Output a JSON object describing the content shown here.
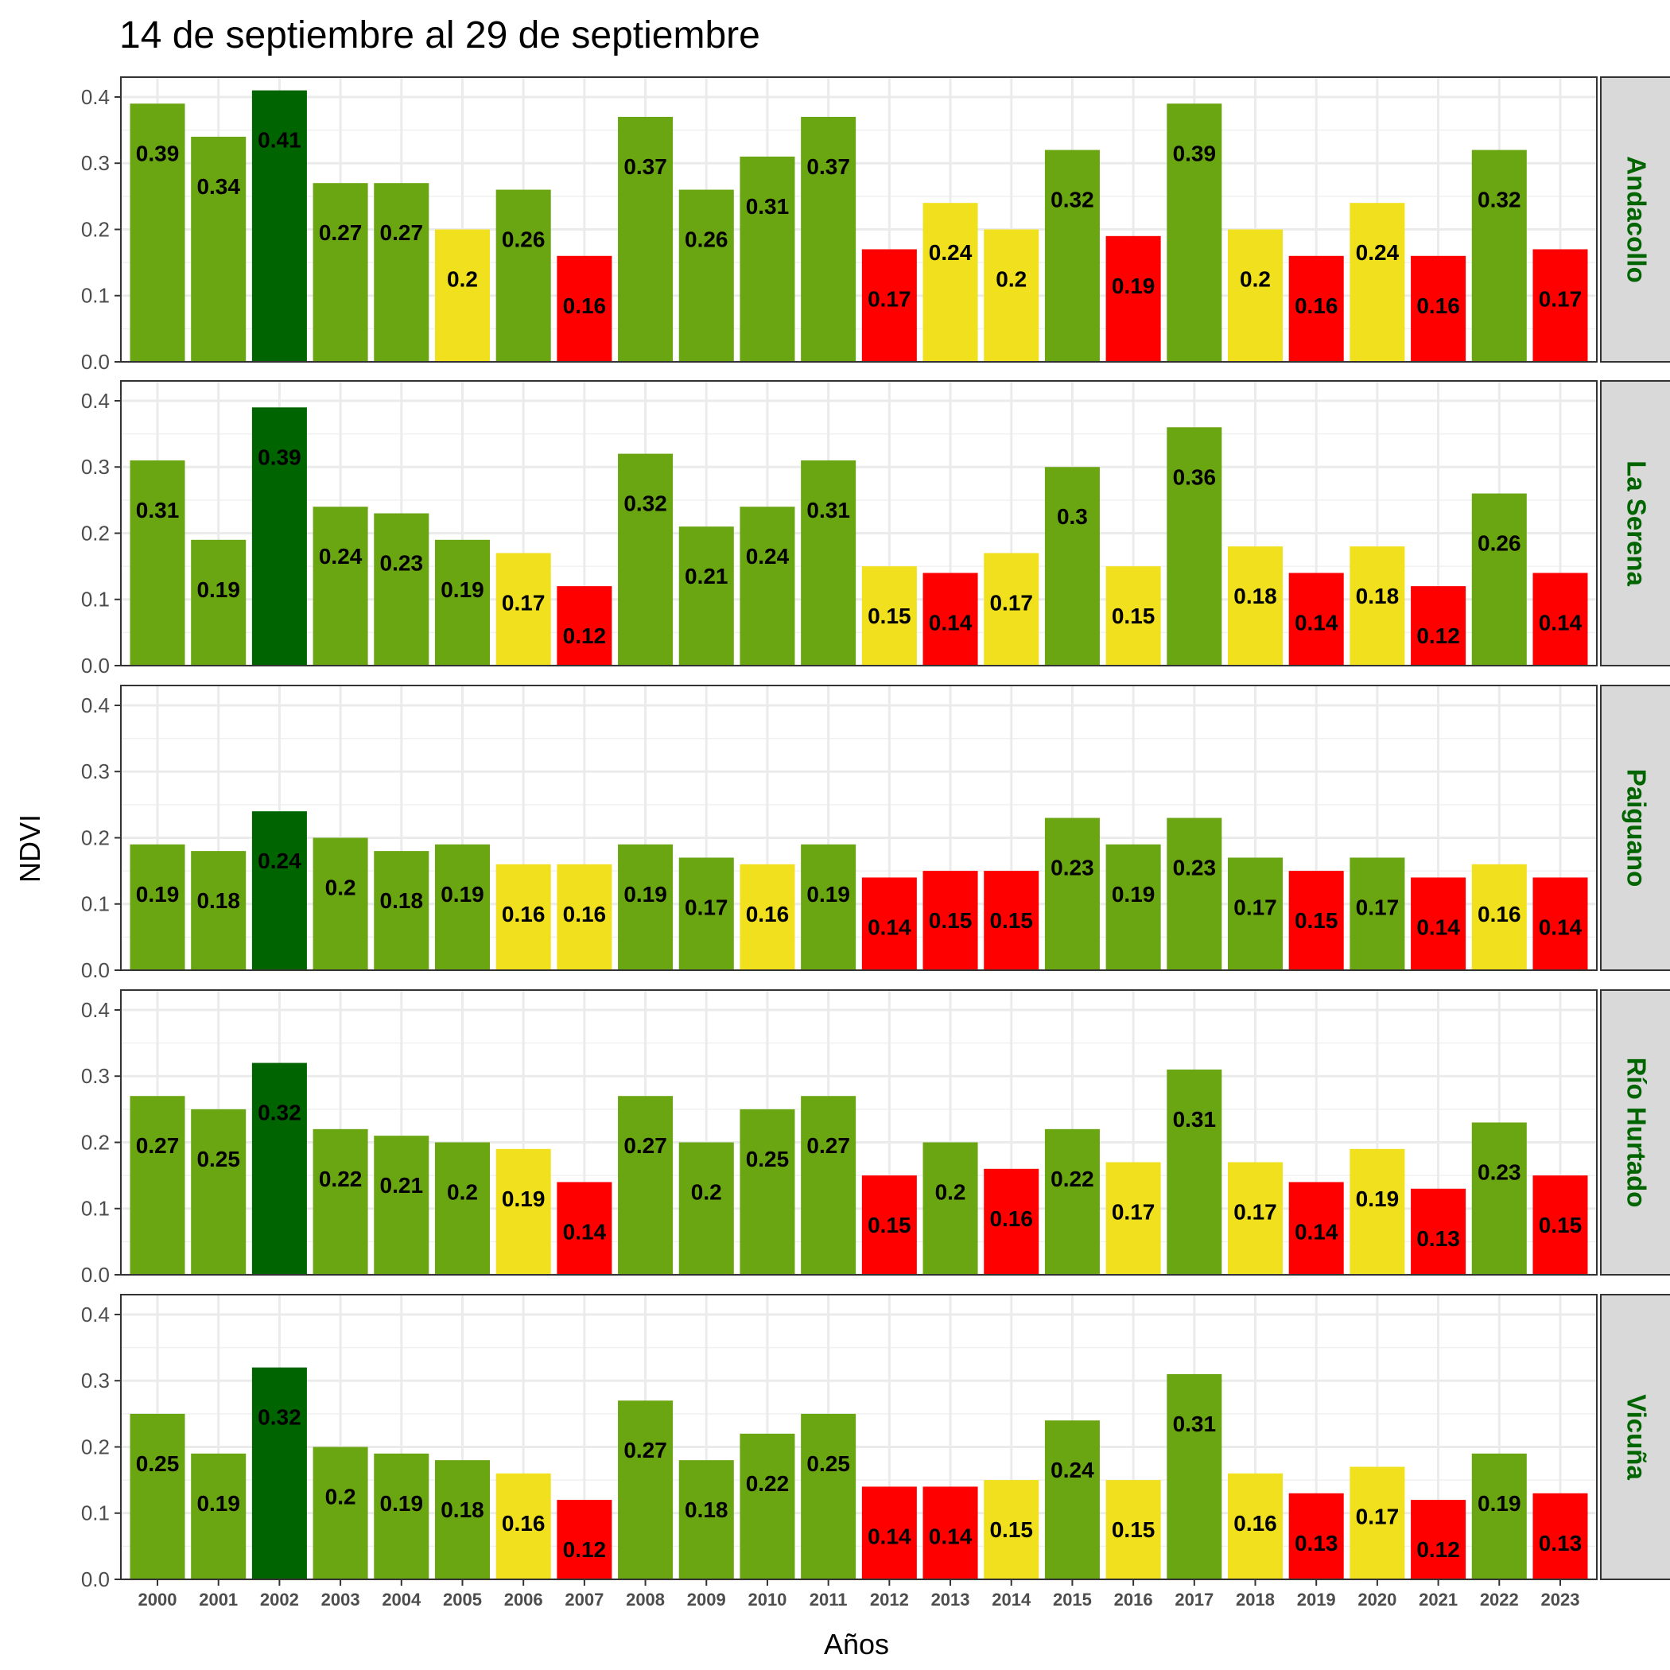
{
  "chart_data": {
    "type": "bar",
    "title": "14 de septiembre al 29 de septiembre",
    "xlabel": "Años",
    "ylabel": "NDVI",
    "ylim": [
      0,
      0.43
    ],
    "yticks": [
      "0.0",
      "0.1",
      "0.2",
      "0.3",
      "0.4"
    ],
    "grid": true,
    "legend": "none",
    "colors": {
      "max": "#006400",
      "high": "#6aa512",
      "mid": "#f1e01d",
      "low": "#ff0000"
    },
    "categories": [
      "2000",
      "2001",
      "2002",
      "2003",
      "2004",
      "2005",
      "2006",
      "2007",
      "2008",
      "2009",
      "2010",
      "2011",
      "2012",
      "2013",
      "2014",
      "2015",
      "2016",
      "2017",
      "2018",
      "2019",
      "2020",
      "2021",
      "2022",
      "2023"
    ],
    "panels": [
      {
        "name": "Andacollo",
        "values": [
          0.39,
          0.34,
          0.41,
          0.27,
          0.27,
          0.2,
          0.26,
          0.16,
          0.37,
          0.26,
          0.31,
          0.37,
          0.17,
          0.24,
          0.2,
          0.32,
          0.19,
          0.39,
          0.2,
          0.16,
          0.24,
          0.16,
          0.32,
          0.17
        ],
        "labels": [
          "0.39",
          "0.34",
          "0.41",
          "0.27",
          "0.27",
          "0.2",
          "0.26",
          "0.16",
          "0.37",
          "0.26",
          "0.31",
          "0.37",
          "0.17",
          "0.24",
          "0.2",
          "0.32",
          "0.19",
          "0.39",
          "0.2",
          "0.16",
          "0.24",
          "0.16",
          "0.32",
          "0.17"
        ],
        "classes": [
          "high",
          "high",
          "max",
          "high",
          "high",
          "mid",
          "high",
          "low",
          "high",
          "high",
          "high",
          "high",
          "low",
          "mid",
          "mid",
          "high",
          "low",
          "high",
          "mid",
          "low",
          "mid",
          "low",
          "high",
          "low"
        ]
      },
      {
        "name": "La Serena",
        "values": [
          0.31,
          0.19,
          0.39,
          0.24,
          0.23,
          0.19,
          0.17,
          0.12,
          0.32,
          0.21,
          0.24,
          0.31,
          0.15,
          0.14,
          0.17,
          0.3,
          0.15,
          0.36,
          0.18,
          0.14,
          0.18,
          0.12,
          0.26,
          0.14
        ],
        "labels": [
          "0.31",
          "0.19",
          "0.39",
          "0.24",
          "0.23",
          "0.19",
          "0.17",
          "0.12",
          "0.32",
          "0.21",
          "0.24",
          "0.31",
          "0.15",
          "0.14",
          "0.17",
          "0.3",
          "0.15",
          "0.36",
          "0.18",
          "0.14",
          "0.18",
          "0.12",
          "0.26",
          "0.14"
        ],
        "classes": [
          "high",
          "high",
          "max",
          "high",
          "high",
          "high",
          "mid",
          "low",
          "high",
          "high",
          "high",
          "high",
          "mid",
          "low",
          "mid",
          "high",
          "mid",
          "high",
          "mid",
          "low",
          "mid",
          "low",
          "high",
          "low"
        ]
      },
      {
        "name": "Paiguano",
        "values": [
          0.19,
          0.18,
          0.24,
          0.2,
          0.18,
          0.19,
          0.16,
          0.16,
          0.19,
          0.17,
          0.16,
          0.19,
          0.14,
          0.15,
          0.15,
          0.23,
          0.19,
          0.23,
          0.17,
          0.15,
          0.17,
          0.14,
          0.16,
          0.14
        ],
        "labels": [
          "0.19",
          "0.18",
          "0.24",
          "0.2",
          "0.18",
          "0.19",
          "0.16",
          "0.16",
          "0.19",
          "0.17",
          "0.16",
          "0.19",
          "0.14",
          "0.15",
          "0.15",
          "0.23",
          "0.19",
          "0.23",
          "0.17",
          "0.15",
          "0.17",
          "0.14",
          "0.16",
          "0.14"
        ],
        "classes": [
          "high",
          "high",
          "max",
          "high",
          "high",
          "high",
          "mid",
          "mid",
          "high",
          "high",
          "mid",
          "high",
          "low",
          "low",
          "low",
          "high",
          "high",
          "high",
          "high",
          "low",
          "high",
          "low",
          "mid",
          "low"
        ]
      },
      {
        "name": "Río Hurtado",
        "values": [
          0.27,
          0.25,
          0.32,
          0.22,
          0.21,
          0.2,
          0.19,
          0.14,
          0.27,
          0.2,
          0.25,
          0.27,
          0.15,
          0.2,
          0.16,
          0.22,
          0.17,
          0.31,
          0.17,
          0.14,
          0.19,
          0.13,
          0.23,
          0.15
        ],
        "labels": [
          "0.27",
          "0.25",
          "0.32",
          "0.22",
          "0.21",
          "0.2",
          "0.19",
          "0.14",
          "0.27",
          "0.2",
          "0.25",
          "0.27",
          "0.15",
          "0.2",
          "0.16",
          "0.22",
          "0.17",
          "0.31",
          "0.17",
          "0.14",
          "0.19",
          "0.13",
          "0.23",
          "0.15"
        ],
        "classes": [
          "high",
          "high",
          "max",
          "high",
          "high",
          "high",
          "mid",
          "low",
          "high",
          "high",
          "high",
          "high",
          "low",
          "high",
          "low",
          "high",
          "mid",
          "high",
          "mid",
          "low",
          "mid",
          "low",
          "high",
          "low"
        ]
      },
      {
        "name": "Vicuña",
        "values": [
          0.25,
          0.19,
          0.32,
          0.2,
          0.19,
          0.18,
          0.16,
          0.12,
          0.27,
          0.18,
          0.22,
          0.25,
          0.14,
          0.14,
          0.15,
          0.24,
          0.15,
          0.31,
          0.16,
          0.13,
          0.17,
          0.12,
          0.19,
          0.13
        ],
        "labels": [
          "0.25",
          "0.19",
          "0.32",
          "0.2",
          "0.19",
          "0.18",
          "0.16",
          "0.12",
          "0.27",
          "0.18",
          "0.22",
          "0.25",
          "0.14",
          "0.14",
          "0.15",
          "0.24",
          "0.15",
          "0.31",
          "0.16",
          "0.13",
          "0.17",
          "0.12",
          "0.19",
          "0.13"
        ],
        "classes": [
          "high",
          "high",
          "max",
          "high",
          "high",
          "high",
          "mid",
          "low",
          "high",
          "high",
          "high",
          "high",
          "low",
          "low",
          "mid",
          "high",
          "mid",
          "high",
          "mid",
          "low",
          "mid",
          "low",
          "high",
          "low"
        ]
      }
    ]
  }
}
